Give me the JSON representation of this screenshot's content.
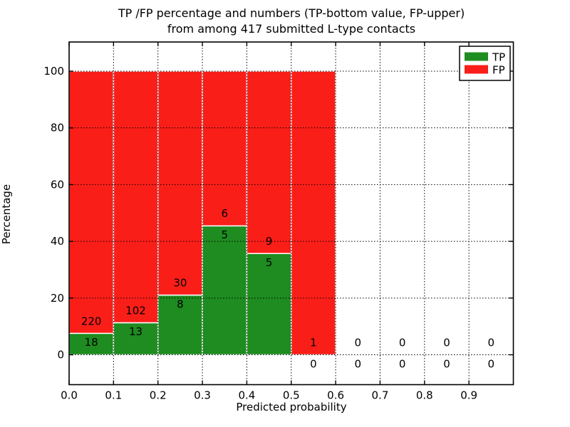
{
  "figure": {
    "title_line1": "TP /FP percentage and numbers (TP-bottom value, FP-upper)",
    "title_line2": "from among 417 submitted L-type contacts",
    "xlabel": "Predicted probability",
    "ylabel": "Percentage",
    "total_contacts": 417
  },
  "chart_data": {
    "type": "bar",
    "stacked": true,
    "normalized_to_percent": 100,
    "note": "Each 0.1-wide bin is normalized to 100%; green TP share at bottom, red FP share on top; labels show raw counts (TP-bottom value, FP-upper).",
    "bin_starts": [
      0.0,
      0.1,
      0.2,
      0.3,
      0.4,
      0.5,
      0.6,
      0.7,
      0.8,
      0.9
    ],
    "bin_width": 0.1,
    "series": [
      {
        "name": "TP",
        "color": "#1e8c20",
        "counts": [
          18,
          13,
          8,
          5,
          5,
          0,
          0,
          0,
          0,
          0
        ]
      },
      {
        "name": "FP",
        "color": "#fa1e19",
        "counts": [
          220,
          102,
          30,
          6,
          9,
          1,
          0,
          0,
          0,
          0
        ]
      }
    ],
    "tp_percent_per_bin": [
      7.56,
      11.3,
      21.05,
      45.45,
      35.71,
      0,
      null,
      null,
      null,
      null
    ],
    "xtick_labels": [
      "0.0",
      "0.1",
      "0.2",
      "0.3",
      "0.4",
      "0.5",
      "0.6",
      "0.7",
      "0.8",
      "0.9"
    ],
    "ytick_values": [
      0,
      20,
      40,
      60,
      80,
      100
    ],
    "xlim": [
      0,
      1.0
    ],
    "ylim": [
      -10.53,
      110.28
    ],
    "grid": true,
    "grid_style": "dotted",
    "bar_edge_color": "#ffffff",
    "legend_position": "upper right",
    "legend_entries": [
      "TP",
      "FP"
    ]
  }
}
